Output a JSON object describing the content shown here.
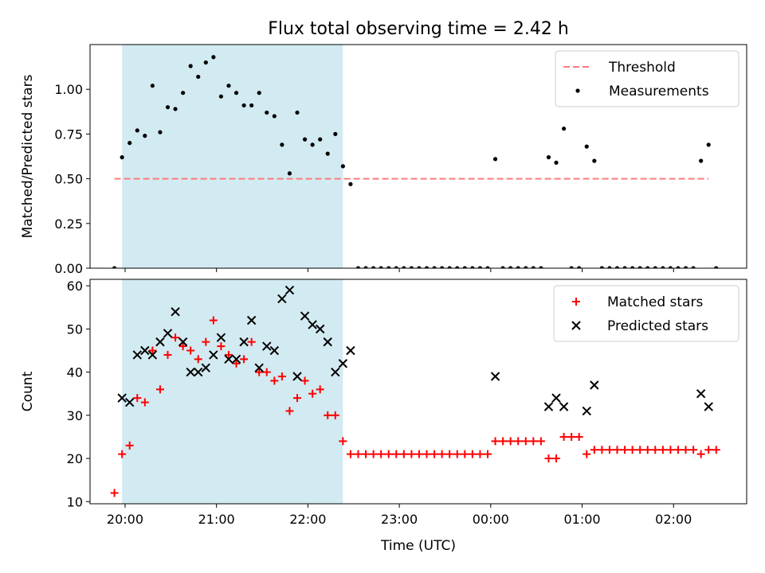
{
  "title": "Flux total observing time = 2.42 h",
  "colors": {
    "threshold": "#ff7b7b",
    "shade": "#add8e6",
    "matched": "#ff0000",
    "predicted": "#000000",
    "measure": "#000000"
  },
  "chart_data": [
    {
      "type": "scatter",
      "ylabel": "Matched/Predicted stars",
      "ylim": [
        0,
        1.25
      ],
      "yticks": [
        "0.00",
        "0.25",
        "0.50",
        "0.75",
        "1.00"
      ],
      "xlim": [
        "19:37",
        "02:48"
      ],
      "shaded_span": [
        "19:58",
        "22:23"
      ],
      "threshold": {
        "name": "Threshold",
        "value": 0.5,
        "x": [
          "19:53",
          "02:23"
        ]
      },
      "legend": {
        "position": "top-right",
        "items": [
          "Threshold",
          "Measurements"
        ]
      },
      "series": [
        {
          "name": "Measurements",
          "points": [
            [
              "19:53",
              0.0
            ],
            [
              "19:58",
              0.62
            ],
            [
              "20:03",
              0.7
            ],
            [
              "20:08",
              0.77
            ],
            [
              "20:13",
              0.74
            ],
            [
              "20:18",
              1.02
            ],
            [
              "20:23",
              0.76
            ],
            [
              "20:28",
              0.9
            ],
            [
              "20:33",
              0.89
            ],
            [
              "20:38",
              0.98
            ],
            [
              "20:43",
              1.13
            ],
            [
              "20:48",
              1.07
            ],
            [
              "20:53",
              1.15
            ],
            [
              "20:58",
              1.18
            ],
            [
              "21:03",
              0.96
            ],
            [
              "21:08",
              1.02
            ],
            [
              "21:13",
              0.98
            ],
            [
              "21:18",
              0.91
            ],
            [
              "21:23",
              0.91
            ],
            [
              "21:28",
              0.98
            ],
            [
              "21:33",
              0.87
            ],
            [
              "21:38",
              0.85
            ],
            [
              "21:43",
              0.69
            ],
            [
              "21:48",
              0.53
            ],
            [
              "21:53",
              0.87
            ],
            [
              "21:58",
              0.72
            ],
            [
              "22:03",
              0.69
            ],
            [
              "22:08",
              0.72
            ],
            [
              "22:13",
              0.64
            ],
            [
              "22:18",
              0.75
            ],
            [
              "22:23",
              0.57
            ],
            [
              "22:28",
              0.47
            ],
            [
              "22:33",
              0.0
            ],
            [
              "22:38",
              0.0
            ],
            [
              "22:43",
              0.0
            ],
            [
              "22:48",
              0.0
            ],
            [
              "22:53",
              0.0
            ],
            [
              "22:58",
              0.0
            ],
            [
              "23:03",
              0.0
            ],
            [
              "23:08",
              0.0
            ],
            [
              "23:13",
              0.0
            ],
            [
              "23:18",
              0.0
            ],
            [
              "23:23",
              0.0
            ],
            [
              "23:28",
              0.0
            ],
            [
              "23:33",
              0.0
            ],
            [
              "23:38",
              0.0
            ],
            [
              "23:43",
              0.0
            ],
            [
              "23:48",
              0.0
            ],
            [
              "23:53",
              0.0
            ],
            [
              "23:58",
              0.0
            ],
            [
              "00:03",
              0.61
            ],
            [
              "00:08",
              0.0
            ],
            [
              "00:13",
              0.0
            ],
            [
              "00:18",
              0.0
            ],
            [
              "00:23",
              0.0
            ],
            [
              "00:28",
              0.0
            ],
            [
              "00:33",
              0.0
            ],
            [
              "00:38",
              0.62
            ],
            [
              "00:43",
              0.59
            ],
            [
              "00:48",
              0.78
            ],
            [
              "00:53",
              0.0
            ],
            [
              "00:58",
              0.0
            ],
            [
              "01:03",
              0.68
            ],
            [
              "01:08",
              0.6
            ],
            [
              "01:13",
              0.0
            ],
            [
              "01:18",
              0.0
            ],
            [
              "01:23",
              0.0
            ],
            [
              "01:28",
              0.0
            ],
            [
              "01:33",
              0.0
            ],
            [
              "01:38",
              0.0
            ],
            [
              "01:43",
              0.0
            ],
            [
              "01:48",
              0.0
            ],
            [
              "01:53",
              0.0
            ],
            [
              "01:58",
              0.0
            ],
            [
              "02:03",
              0.0
            ],
            [
              "02:08",
              0.0
            ],
            [
              "02:13",
              0.0
            ],
            [
              "02:18",
              0.6
            ],
            [
              "02:23",
              0.69
            ],
            [
              "02:28",
              0.0
            ]
          ]
        }
      ]
    },
    {
      "type": "scatter",
      "xlabel": "Time (UTC)",
      "ylabel": "Count",
      "ylim": [
        9.5,
        61.5
      ],
      "yticks": [
        "10",
        "20",
        "30",
        "40",
        "50",
        "60"
      ],
      "xlim": [
        "19:37",
        "02:48"
      ],
      "xticks": [
        "20:00",
        "21:00",
        "22:00",
        "23:00",
        "00:00",
        "01:00",
        "02:00"
      ],
      "shaded_span": [
        "19:58",
        "22:23"
      ],
      "legend": {
        "position": "top-right",
        "items": [
          "Matched stars",
          "Predicted stars"
        ]
      },
      "series": [
        {
          "name": "Matched stars",
          "points": [
            [
              "19:53",
              12
            ],
            [
              "19:58",
              21
            ],
            [
              "20:03",
              23
            ],
            [
              "20:08",
              34
            ],
            [
              "20:13",
              33
            ],
            [
              "20:18",
              45
            ],
            [
              "20:23",
              36
            ],
            [
              "20:28",
              44
            ],
            [
              "20:33",
              48
            ],
            [
              "20:38",
              46
            ],
            [
              "20:43",
              45
            ],
            [
              "20:48",
              43
            ],
            [
              "20:53",
              47
            ],
            [
              "20:58",
              52
            ],
            [
              "21:03",
              46
            ],
            [
              "21:08",
              44
            ],
            [
              "21:13",
              42
            ],
            [
              "21:18",
              43
            ],
            [
              "21:23",
              47
            ],
            [
              "21:28",
              40
            ],
            [
              "21:33",
              40
            ],
            [
              "21:38",
              38
            ],
            [
              "21:43",
              39
            ],
            [
              "21:48",
              31
            ],
            [
              "21:53",
              34
            ],
            [
              "21:58",
              38
            ],
            [
              "22:03",
              35
            ],
            [
              "22:08",
              36
            ],
            [
              "22:13",
              30
            ],
            [
              "22:18",
              30
            ],
            [
              "22:23",
              24
            ],
            [
              "22:28",
              21
            ],
            [
              "22:33",
              21
            ],
            [
              "22:38",
              21
            ],
            [
              "22:43",
              21
            ],
            [
              "22:48",
              21
            ],
            [
              "22:53",
              21
            ],
            [
              "22:58",
              21
            ],
            [
              "23:03",
              21
            ],
            [
              "23:08",
              21
            ],
            [
              "23:13",
              21
            ],
            [
              "23:18",
              21
            ],
            [
              "23:23",
              21
            ],
            [
              "23:28",
              21
            ],
            [
              "23:33",
              21
            ],
            [
              "23:38",
              21
            ],
            [
              "23:43",
              21
            ],
            [
              "23:48",
              21
            ],
            [
              "23:53",
              21
            ],
            [
              "23:58",
              21
            ],
            [
              "00:03",
              24
            ],
            [
              "00:08",
              24
            ],
            [
              "00:13",
              24
            ],
            [
              "00:18",
              24
            ],
            [
              "00:23",
              24
            ],
            [
              "00:28",
              24
            ],
            [
              "00:33",
              24
            ],
            [
              "00:38",
              20
            ],
            [
              "00:43",
              20
            ],
            [
              "00:48",
              25
            ],
            [
              "00:53",
              25
            ],
            [
              "00:58",
              25
            ],
            [
              "01:03",
              21
            ],
            [
              "01:08",
              22
            ],
            [
              "01:13",
              22
            ],
            [
              "01:18",
              22
            ],
            [
              "01:23",
              22
            ],
            [
              "01:28",
              22
            ],
            [
              "01:33",
              22
            ],
            [
              "01:38",
              22
            ],
            [
              "01:43",
              22
            ],
            [
              "01:48",
              22
            ],
            [
              "01:53",
              22
            ],
            [
              "01:58",
              22
            ],
            [
              "02:03",
              22
            ],
            [
              "02:08",
              22
            ],
            [
              "02:13",
              22
            ],
            [
              "02:18",
              21
            ],
            [
              "02:23",
              22
            ],
            [
              "02:28",
              22
            ]
          ]
        },
        {
          "name": "Predicted stars",
          "points": [
            [
              "19:58",
              34
            ],
            [
              "20:03",
              33
            ],
            [
              "20:08",
              44
            ],
            [
              "20:13",
              45
            ],
            [
              "20:18",
              44
            ],
            [
              "20:23",
              47
            ],
            [
              "20:28",
              49
            ],
            [
              "20:33",
              54
            ],
            [
              "20:38",
              47
            ],
            [
              "20:43",
              40
            ],
            [
              "20:48",
              40
            ],
            [
              "20:53",
              41
            ],
            [
              "20:58",
              44
            ],
            [
              "21:03",
              48
            ],
            [
              "21:08",
              43
            ],
            [
              "21:13",
              43
            ],
            [
              "21:18",
              47
            ],
            [
              "21:23",
              52
            ],
            [
              "21:28",
              41
            ],
            [
              "21:33",
              46
            ],
            [
              "21:38",
              45
            ],
            [
              "21:43",
              57
            ],
            [
              "21:48",
              59
            ],
            [
              "21:53",
              39
            ],
            [
              "21:58",
              53
            ],
            [
              "22:03",
              51
            ],
            [
              "22:08",
              50
            ],
            [
              "22:13",
              47
            ],
            [
              "22:18",
              40
            ],
            [
              "22:23",
              42
            ],
            [
              "22:28",
              45
            ],
            [
              "00:03",
              39
            ],
            [
              "00:38",
              32
            ],
            [
              "00:43",
              34
            ],
            [
              "00:48",
              32
            ],
            [
              "01:03",
              31
            ],
            [
              "01:08",
              37
            ],
            [
              "02:18",
              35
            ],
            [
              "02:23",
              32
            ]
          ]
        }
      ]
    }
  ]
}
